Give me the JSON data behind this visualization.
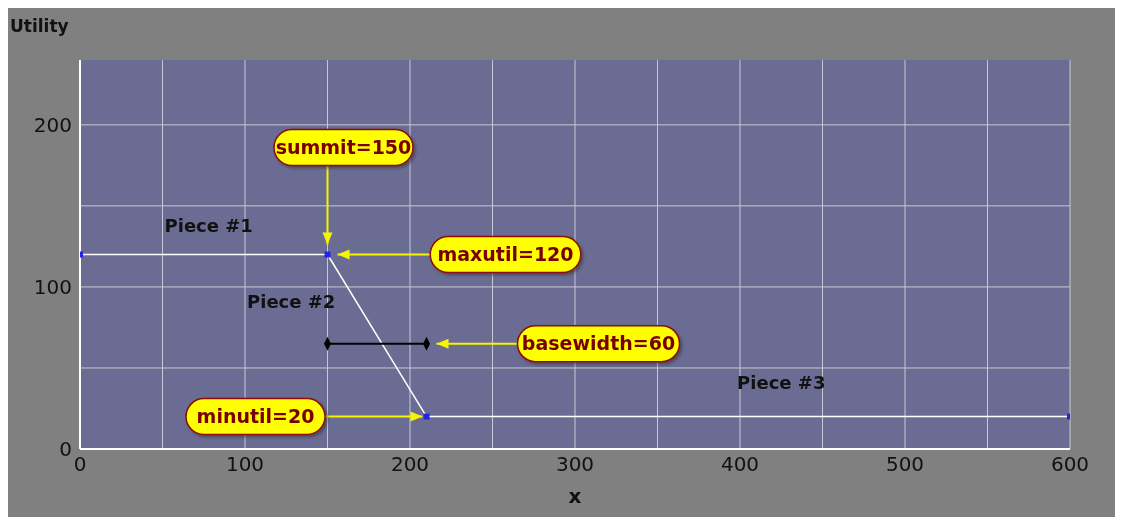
{
  "chart_data": {
    "type": "line",
    "xlabel": "x",
    "ylabel": "Utility",
    "xlim": [
      0,
      600
    ],
    "xticks": [
      0,
      {
        "value": 50,
        "label": null
      },
      100,
      {
        "value": 150,
        "label": null
      },
      200,
      {
        "value": 250,
        "label": null
      },
      300,
      {
        "value": 350,
        "label": null
      },
      400,
      {
        "value": 450,
        "label": null
      },
      500,
      {
        "value": 550,
        "label": null
      },
      600
    ],
    "ylim": [
      0,
      240
    ],
    "yticks": [
      0,
      {
        "value": 50,
        "label": null
      },
      100,
      {
        "value": 150,
        "label": null
      },
      200
    ],
    "grid": true,
    "marker": "square",
    "line_style": "solid",
    "series": [
      {
        "x": [
          0,
          150,
          210,
          600
        ],
        "values": [
          120,
          120,
          20,
          20
        ],
        "color": "#ffffff"
      },
      {
        "x": [
          150,
          210
        ],
        "values": [
          65,
          65
        ],
        "color": "#000000",
        "marker": "diamond"
      }
    ],
    "annotations": [
      "Piece #1",
      "Piece #2",
      "Piece #3",
      "summit=150",
      "maxutil=120",
      "basewidth=60",
      {
        "text": "minutil=20",
        "x": 210,
        "y": 20
      }
    ]
  }
}
